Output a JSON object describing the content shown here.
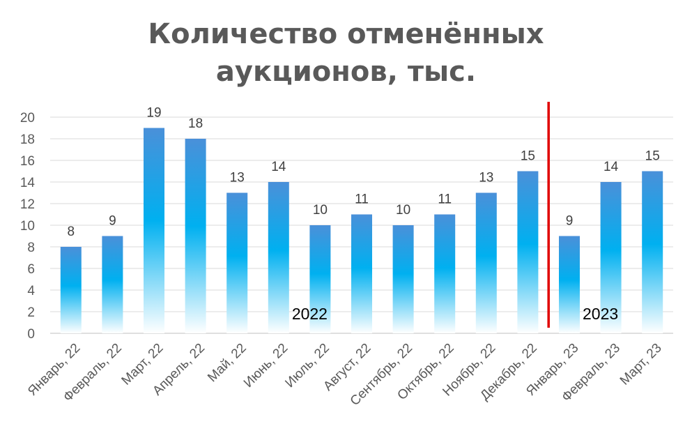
{
  "chart_data": {
    "type": "bar",
    "title_line1": "Количество отменённых",
    "title_line2": "аукционов, тыс.",
    "categories": [
      "Январь, 22",
      "Февраль, 22",
      "Март, 22",
      "Апрель, 22",
      "Май, 22",
      "Июнь, 22",
      "Июль, 22",
      "Август, 22",
      "Сентябрь, 22",
      "Октябрь, 22",
      "Ноябрь, 22",
      "Декабрь, 22",
      "Январь, 23",
      "Февраль, 23",
      "Март, 23"
    ],
    "values": [
      8,
      9,
      19,
      18,
      13,
      14,
      10,
      11,
      10,
      11,
      13,
      15,
      9,
      14,
      15
    ],
    "ylim": [
      0,
      20
    ],
    "yticks": [
      0,
      2,
      4,
      6,
      8,
      10,
      12,
      14,
      16,
      18,
      20
    ],
    "grid": true,
    "legend": "none",
    "bar_gradient": [
      "#4a90d9",
      "#00b0f0",
      "#ffffff"
    ],
    "divider": {
      "between": [
        "Декабрь, 22",
        "Январь, 23"
      ],
      "color": "#e00000"
    },
    "annotations": [
      {
        "text": "2022",
        "near": "Июль, 22"
      },
      {
        "text": "2023",
        "near": "Февраль, 23"
      }
    ]
  }
}
